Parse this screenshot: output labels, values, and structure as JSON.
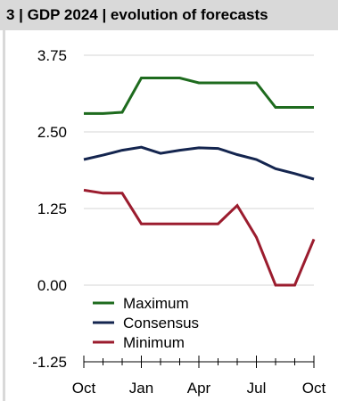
{
  "chart_data": {
    "type": "line",
    "title": "3 | GDP 2024 | evolution of forecasts",
    "xlabel": "",
    "ylabel": "",
    "x_tick_labels": [
      "Oct",
      "Jan",
      "Apr",
      "Jul",
      "Oct"
    ],
    "y_ticks": [
      "3.75",
      "2.50",
      "1.25",
      "0.00",
      "-1.25"
    ],
    "ylim": [
      -1.25,
      3.75
    ],
    "grid": "horizontal",
    "legend_position": "lower-left",
    "x_months": [
      0,
      1,
      2,
      3,
      4,
      5,
      6,
      7,
      8,
      9,
      10,
      11,
      12
    ],
    "series": [
      {
        "name": "Maximum",
        "color": "#1e6b1e",
        "values": [
          2.8,
          2.8,
          2.82,
          3.38,
          3.38,
          3.38,
          3.3,
          3.3,
          3.3,
          3.3,
          2.9,
          2.9,
          2.9
        ]
      },
      {
        "name": "Consensus",
        "color": "#14254f",
        "values": [
          2.05,
          2.12,
          2.2,
          2.25,
          2.15,
          2.2,
          2.24,
          2.23,
          2.13,
          2.05,
          1.9,
          1.82,
          1.73
        ]
      },
      {
        "name": "Minimum",
        "color": "#9b1c2e",
        "values": [
          1.55,
          1.5,
          1.5,
          1.0,
          1.0,
          1.0,
          1.0,
          1.0,
          1.3,
          0.78,
          0.0,
          0.0,
          0.75
        ]
      }
    ]
  }
}
